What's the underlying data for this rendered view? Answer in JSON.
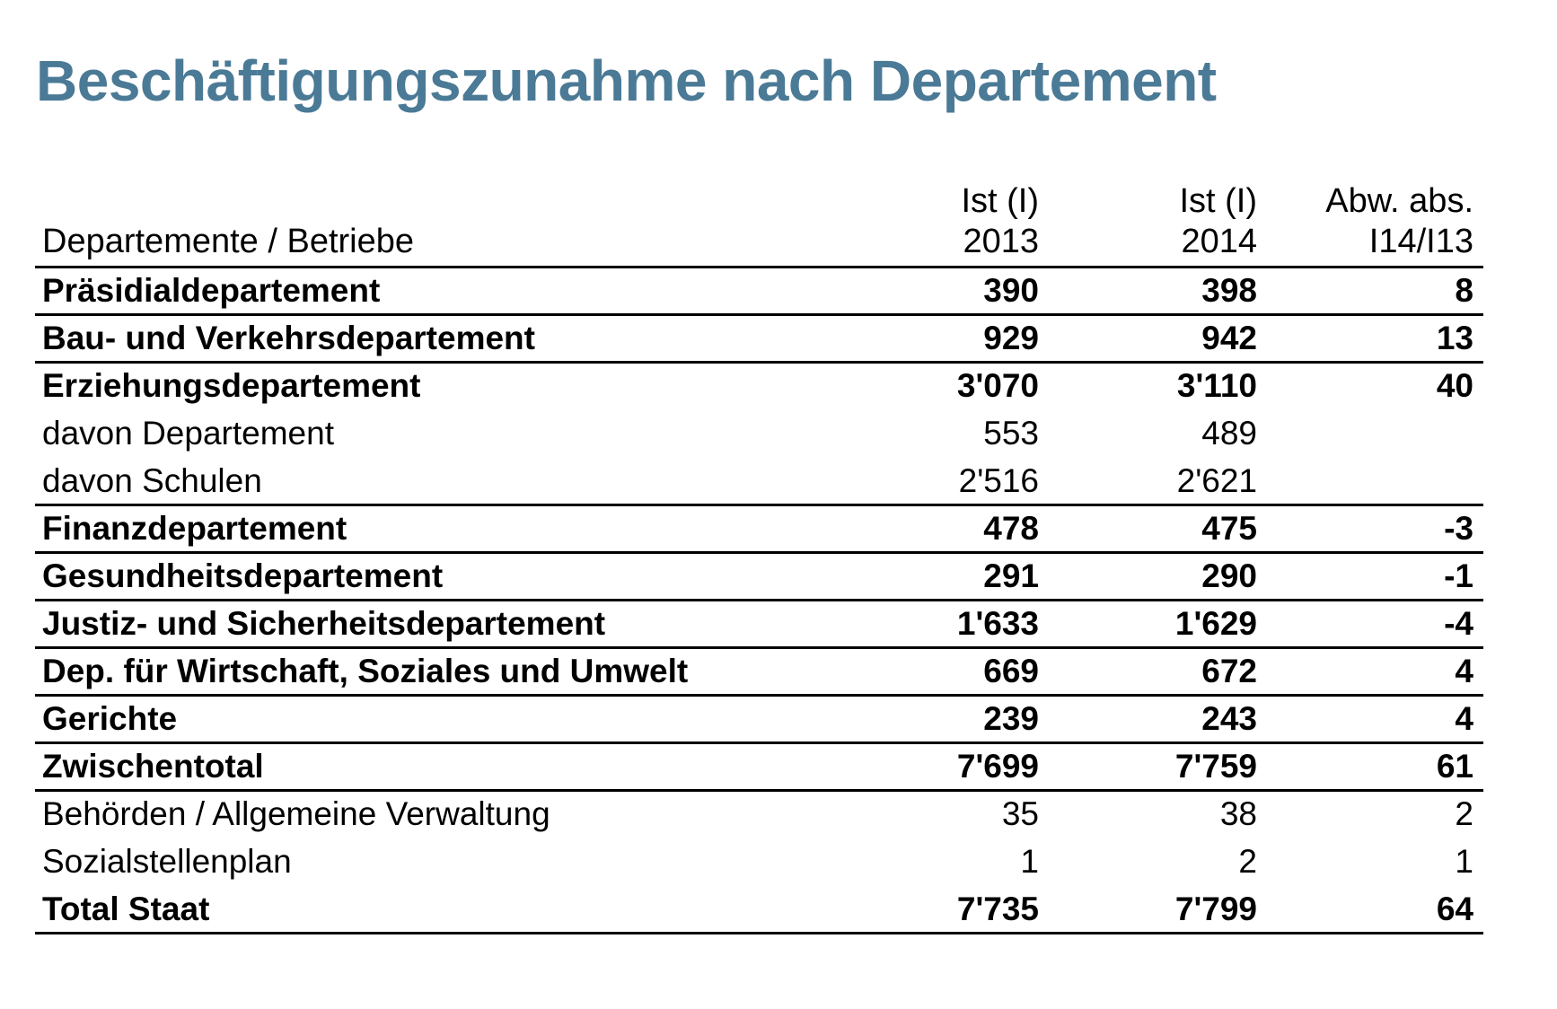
{
  "title": "Beschäftigungszunahme nach Departement",
  "table": {
    "header": {
      "label": "Departemente / Betriebe",
      "columns": [
        {
          "line1": "Ist (I)",
          "line2": "2013"
        },
        {
          "line1": "Ist (I)",
          "line2": "2014"
        },
        {
          "line1": "Abw. abs.",
          "line2": "I14/I13"
        }
      ]
    },
    "rows": [
      {
        "name": "Präsidialdepartement",
        "v2013": "390",
        "v2014": "398",
        "abw": "8",
        "bold": true,
        "rule": true
      },
      {
        "name": "Bau- und Verkehrsdepartement",
        "v2013": "929",
        "v2014": "942",
        "abw": "13",
        "bold": true,
        "rule": true
      },
      {
        "name": "Erziehungsdepartement",
        "v2013": "3'070",
        "v2014": "3'110",
        "abw": "40",
        "bold": true,
        "rule": false
      },
      {
        "name": "davon Departement",
        "v2013": "553",
        "v2014": "489",
        "abw": "",
        "bold": false,
        "rule": false
      },
      {
        "name": "davon Schulen",
        "v2013": "2'516",
        "v2014": "2'621",
        "abw": "",
        "bold": false,
        "rule": true
      },
      {
        "name": "Finanzdepartement",
        "v2013": "478",
        "v2014": "475",
        "abw": "-3",
        "bold": true,
        "rule": true
      },
      {
        "name": "Gesundheitsdepartement",
        "v2013": "291",
        "v2014": "290",
        "abw": "-1",
        "bold": true,
        "rule": true
      },
      {
        "name": "Justiz- und Sicherheitsdepartement",
        "v2013": "1'633",
        "v2014": "1'629",
        "abw": "-4",
        "bold": true,
        "rule": true
      },
      {
        "name": "Dep. für Wirtschaft, Soziales und Umwelt",
        "v2013": "669",
        "v2014": "672",
        "abw": "4",
        "bold": true,
        "rule": true
      },
      {
        "name": "Gerichte",
        "v2013": "239",
        "v2014": "243",
        "abw": "4",
        "bold": true,
        "rule": true
      },
      {
        "name": "Zwischentotal",
        "v2013": "7'699",
        "v2014": "7'759",
        "abw": "61",
        "bold": true,
        "rule": true
      },
      {
        "name": "Behörden / Allgemeine Verwaltung",
        "v2013": "35",
        "v2014": "38",
        "abw": "2",
        "bold": false,
        "rule": false
      },
      {
        "name": "Sozialstellenplan",
        "v2013": "1",
        "v2014": "2",
        "abw": "1",
        "bold": false,
        "rule": false
      },
      {
        "name": "Total Staat",
        "v2013": "7'735",
        "v2014": "7'799",
        "abw": "64",
        "bold": true,
        "rule": true
      }
    ]
  },
  "colors": {
    "title": "#4a7a96",
    "text": "#000000",
    "rule": "#000000"
  }
}
